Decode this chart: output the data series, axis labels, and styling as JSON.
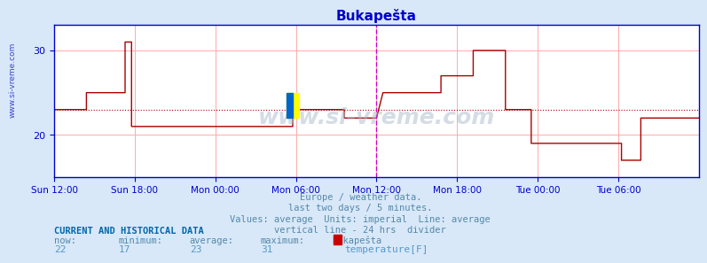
{
  "title": "Bukaреšta",
  "bg_color": "#d8e8f8",
  "plot_bg_color": "#ffffff",
  "line_color": "#aa0000",
  "axis_color": "#0000cc",
  "grid_color": "#ffaaaa",
  "avg_line_color": "#aa0000",
  "divider_color": "#cc00cc",
  "y_min": 15,
  "y_max": 33,
  "y_ticks": [
    20,
    30
  ],
  "average_value": 23,
  "x_tick_labels": [
    "Sun 12:00",
    "Sun 18:00",
    "Mon 00:00",
    "Mon 06:00",
    "Mon 12:00",
    "Mon 18:00",
    "Tue 00:00",
    "Tue 06:00"
  ],
  "x_tick_positions": [
    0.0,
    0.25,
    0.5,
    0.75,
    1.0,
    1.25,
    1.5,
    1.75
  ],
  "divider_x": 1.0,
  "caption_lines": [
    "Europe / weather data.",
    "last two days / 5 minutes.",
    "Values: average  Units: imperial  Line: average",
    "vertical line - 24 hrs  divider"
  ],
  "footer_label": "CURRENT AND HISTORICAL DATA",
  "footer_cols": [
    "now:",
    "minimum:",
    "average:",
    "maximum:",
    "Bukaреšta"
  ],
  "footer_vals": [
    "22",
    "17",
    "23",
    "31",
    "temperature[F]"
  ],
  "watermark": "www.si-vreme.com",
  "sidebar_text": "www.si-vreme.com",
  "temperature_data_x": [
    0.0,
    0.02,
    0.04,
    0.06,
    0.08,
    0.1,
    0.1,
    0.12,
    0.14,
    0.16,
    0.18,
    0.2,
    0.22,
    0.22,
    0.24,
    0.24,
    0.26,
    0.28,
    0.3,
    0.32,
    0.34,
    0.36,
    0.38,
    0.4,
    0.42,
    0.44,
    0.46,
    0.48,
    0.5,
    0.52,
    0.54,
    0.56,
    0.58,
    0.6,
    0.62,
    0.64,
    0.66,
    0.68,
    0.7,
    0.72,
    0.74,
    0.74,
    0.76,
    0.78,
    0.8,
    0.82,
    0.84,
    0.86,
    0.88,
    0.9,
    0.9,
    0.92,
    0.94,
    0.96,
    0.98,
    1.0,
    1.0,
    1.02,
    1.04,
    1.06,
    1.08,
    1.1,
    1.12,
    1.14,
    1.16,
    1.18,
    1.2,
    1.2,
    1.22,
    1.24,
    1.26,
    1.28,
    1.3,
    1.3,
    1.32,
    1.34,
    1.36,
    1.38,
    1.4,
    1.4,
    1.42,
    1.44,
    1.46,
    1.48,
    1.48,
    1.5,
    1.52,
    1.54,
    1.56,
    1.58,
    1.6,
    1.62,
    1.64,
    1.66,
    1.68,
    1.7,
    1.72,
    1.74,
    1.76,
    1.76,
    1.78,
    1.8,
    1.82,
    1.82,
    1.84,
    1.86,
    1.88,
    1.9,
    1.92,
    1.94,
    1.96,
    1.98,
    2.0
  ],
  "temperature_data_y": [
    23,
    23,
    23,
    23,
    23,
    23,
    25,
    25,
    25,
    25,
    25,
    25,
    25,
    31,
    31,
    21,
    21,
    21,
    21,
    21,
    21,
    21,
    21,
    21,
    21,
    21,
    21,
    21,
    21,
    21,
    21,
    21,
    21,
    21,
    21,
    21,
    21,
    21,
    21,
    21,
    21,
    23,
    23,
    23,
    23,
    23,
    23,
    23,
    23,
    23,
    22,
    22,
    22,
    22,
    22,
    22,
    22,
    25,
    25,
    25,
    25,
    25,
    25,
    25,
    25,
    25,
    25,
    27,
    27,
    27,
    27,
    27,
    27,
    30,
    30,
    30,
    30,
    30,
    30,
    23,
    23,
    23,
    23,
    23,
    19,
    19,
    19,
    19,
    19,
    19,
    19,
    19,
    19,
    19,
    19,
    19,
    19,
    19,
    19,
    17,
    17,
    17,
    17,
    22,
    22,
    22,
    22,
    22,
    22,
    22,
    22,
    22,
    22
  ]
}
